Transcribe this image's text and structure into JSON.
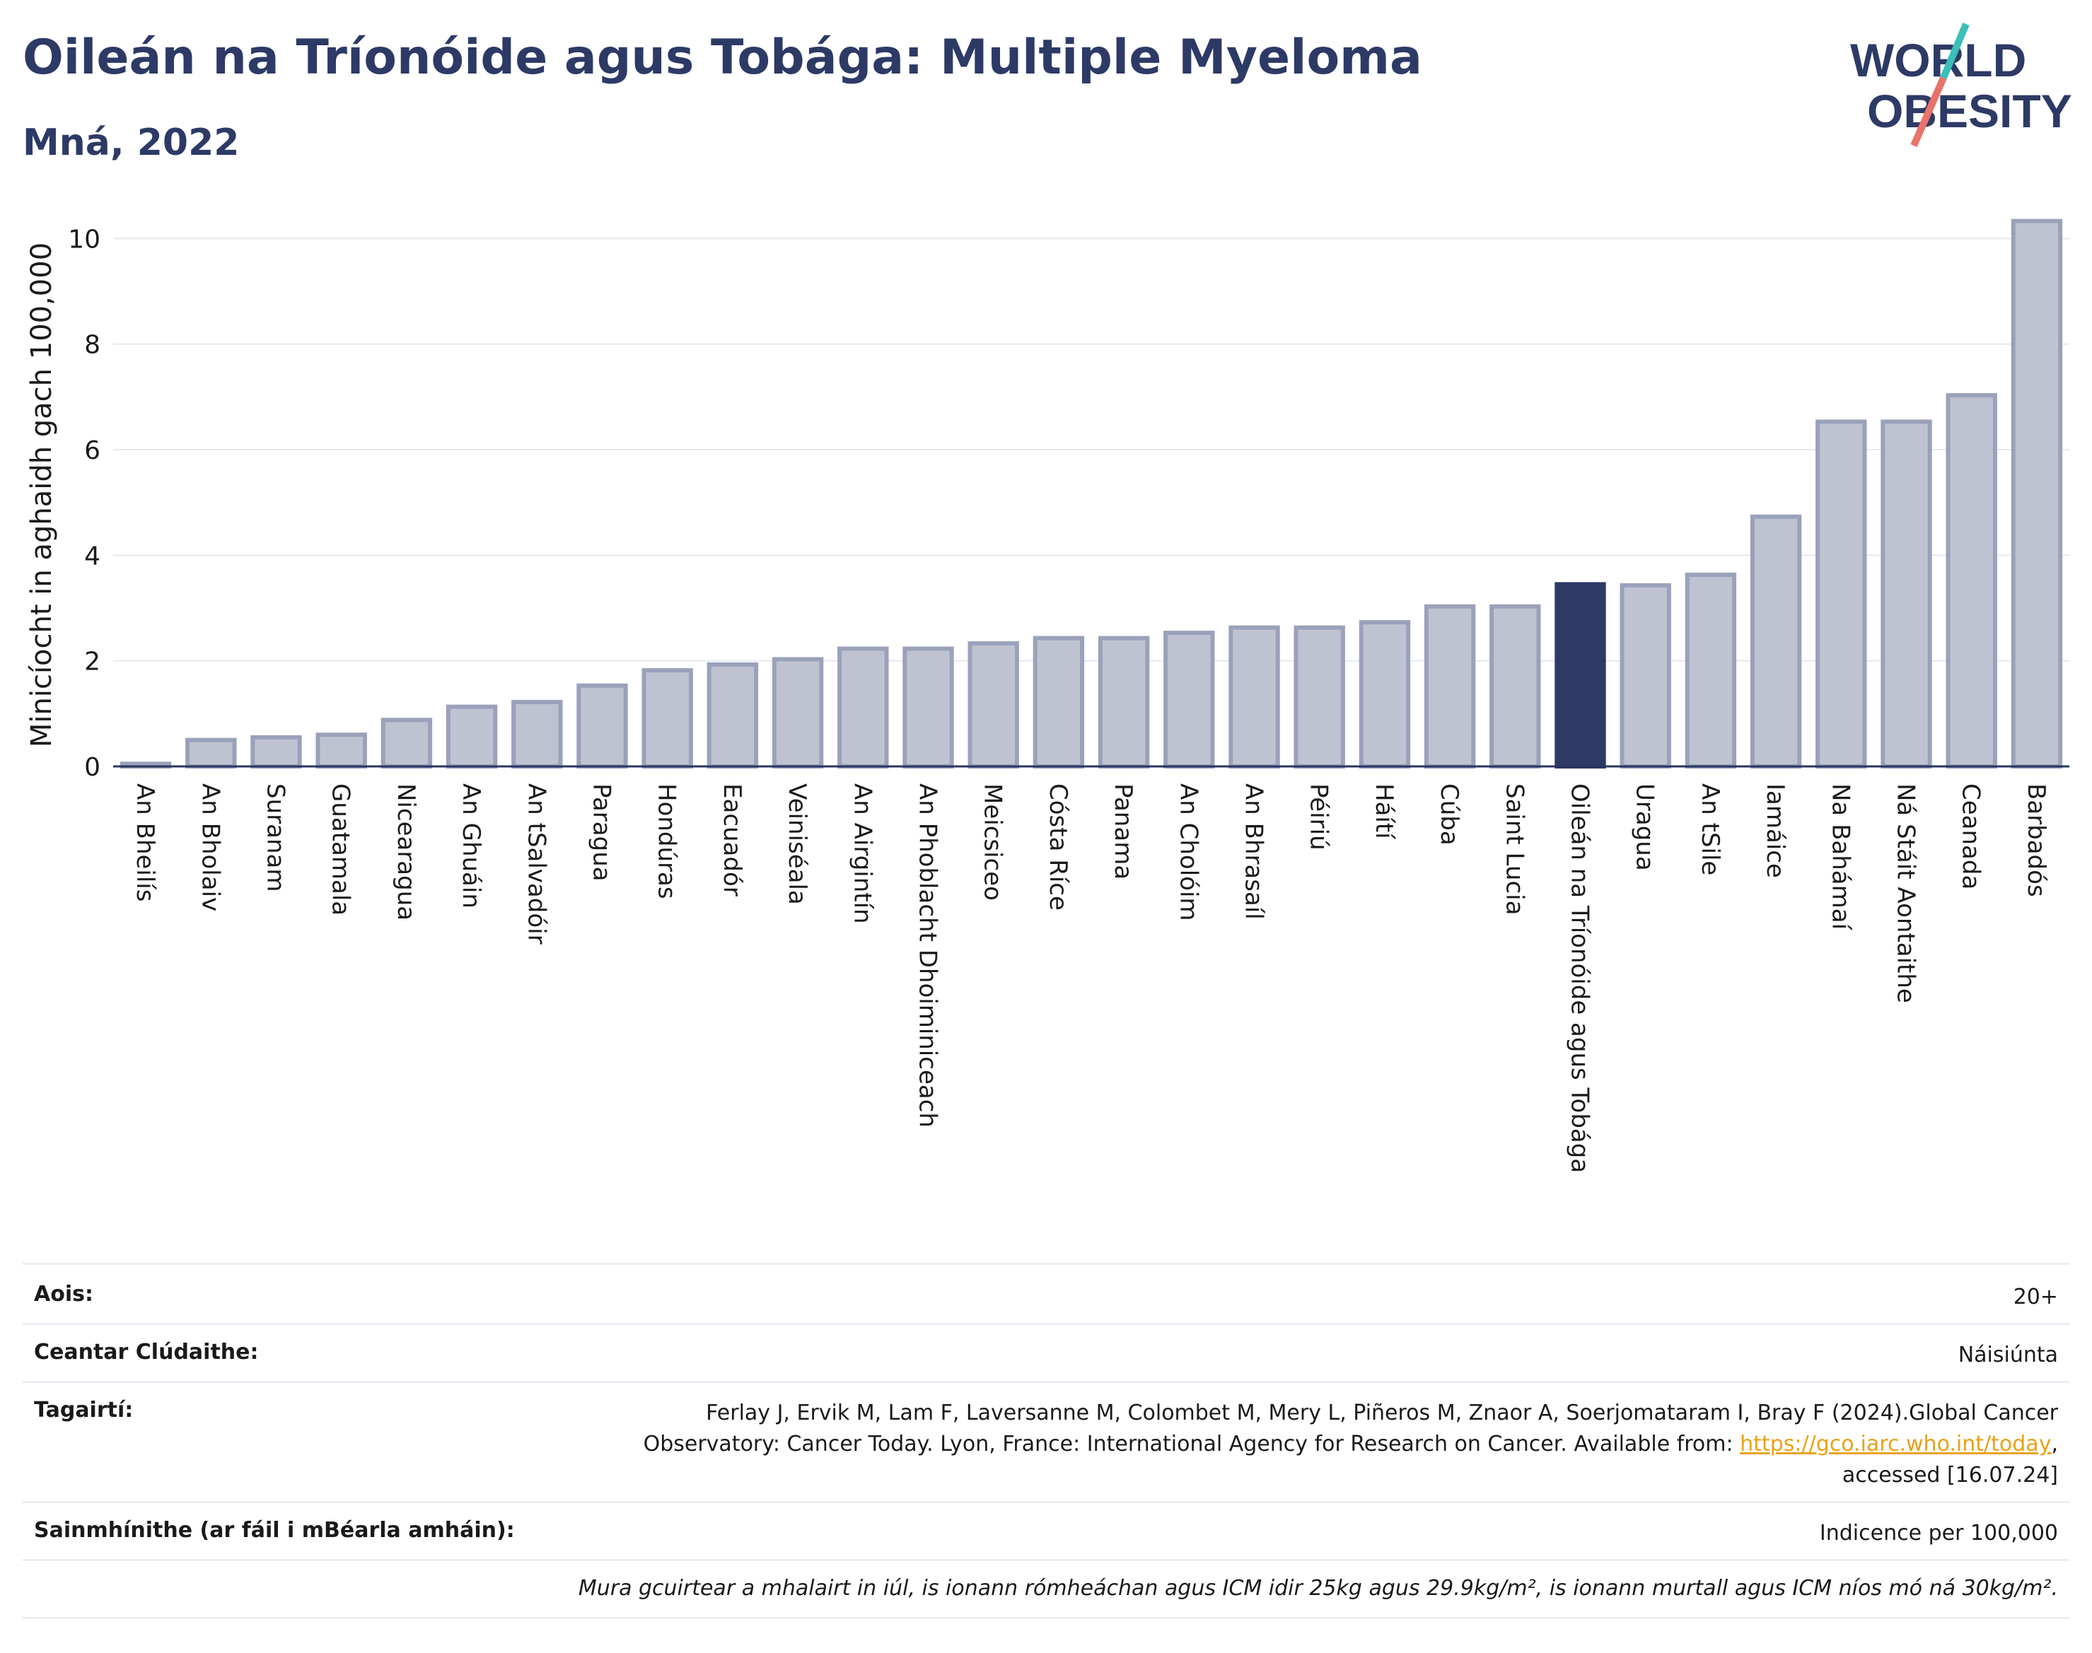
{
  "header": {
    "title": "Oileán na Tríonóide agus Tobága: Multiple Myeloma",
    "subtitle": "Mná, 2022"
  },
  "logo": {
    "line1": "WORLD",
    "line2": "OBESITY",
    "accent1": "#3bbfb8",
    "accent2": "#e8736a"
  },
  "chart_data": {
    "type": "bar",
    "ylabel": "Minicíocht in aghaidh gach 100,000",
    "xlabel": "",
    "ylim": [
      0,
      10.5
    ],
    "yticks": [
      0,
      2,
      4,
      6,
      8,
      10
    ],
    "grid": true,
    "highlight": "Oileán na Tríonóide agus Tobága",
    "colors": {
      "bar": "#bfc3d1",
      "bar_edge": "#9aa1bb",
      "highlight": "#2d3a66",
      "axis": "#2a3560"
    },
    "categories": [
      "An Bheilís",
      "An Bholaiv",
      "Suranam",
      "Guatamala",
      "Nicearagua",
      "An Ghuáin",
      "An tSalvadóir",
      "Paragua",
      "Hondúras",
      "Eacuadór",
      "Veiniséala",
      "An Airgintín",
      "An Phoblacht Dhoiminiceach",
      "Meicsiceo",
      "Cósta Ríce",
      "Panama",
      "An Cholóim",
      "An Bhrasaíl",
      "Péiriú",
      "Háítí",
      "Cúba",
      "Saint Lucia",
      "Oileán na Tríonóide agus Tobága",
      "Uragua",
      "An tSile",
      "Iamáice",
      "Na Bahámaí",
      "Ná Stáit Aontaithe",
      "Ceanada",
      "Barbadós"
    ],
    "values": [
      0.05,
      0.5,
      0.55,
      0.6,
      0.88,
      1.13,
      1.22,
      1.53,
      1.82,
      1.93,
      2.03,
      2.23,
      2.23,
      2.33,
      2.43,
      2.43,
      2.53,
      2.63,
      2.63,
      2.73,
      3.03,
      3.03,
      3.45,
      3.43,
      3.63,
      4.73,
      6.53,
      6.53,
      7.03,
      10.33
    ]
  },
  "meta": {
    "rows": [
      {
        "label": "Aois:",
        "value": "20+"
      },
      {
        "label": "Ceantar Clúdaithe:",
        "value": "Náisiúnta"
      },
      {
        "label": "Tagairtí:",
        "value_line1": "Ferlay J, Ervik M, Lam F, Laversanne M, Colombet M, Mery L, Piñeros M, Znaor A, Soerjomataram I, Bray F (2024).Global Cancer",
        "value_line2_pre": "Observatory: Cancer Today. Lyon, France: International Agency for Research on Cancer. Available from: ",
        "link": "https://gco.iarc.who.int/today",
        "value_line2_post": ",",
        "value_line3": "accessed [16.07.24]"
      },
      {
        "label": "Sainmhínithe (ar fáil i mBéarla amháin):",
        "value": "Indicence per 100,000"
      }
    ],
    "note": "Mura gcuirtear a mhalairt in iúl, is ionann rómheáchan agus ICM idir 25kg agus 29.9kg/m², is ionann murtall agus ICM níos mó ná 30kg/m²."
  }
}
